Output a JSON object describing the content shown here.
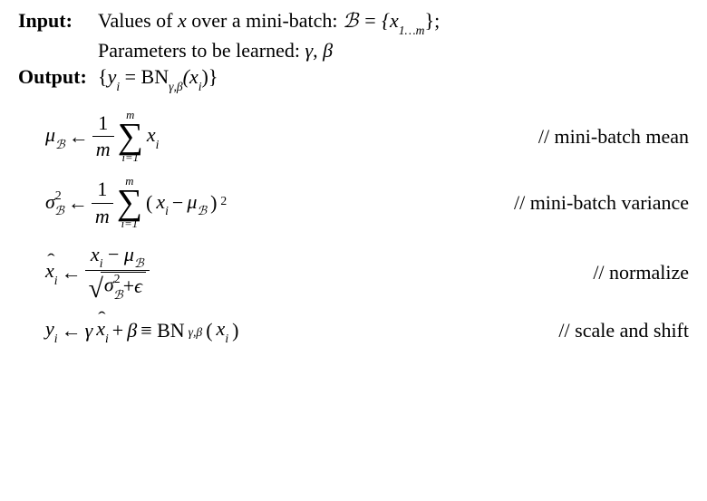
{
  "header": {
    "input_label": "Input:",
    "input_line1_pre": "Values of ",
    "input_line1_var": "x",
    "input_line1_mid": " over a mini-batch: ",
    "input_line1_set": "ℬ = {x",
    "input_line1_sub": "1…m",
    "input_line1_close": "};",
    "input_line2": "Parameters to be learned: ",
    "input_line2_gamma": "γ",
    "input_line2_comma": ", ",
    "input_line2_beta": "β",
    "output_label": "Output:",
    "output_expr_open": "{",
    "output_expr_y": "y",
    "output_expr_ysub": "i",
    "output_expr_eq": " = BN",
    "output_expr_bnsub": "γ,β",
    "output_expr_x": "(x",
    "output_expr_xsub": "i",
    "output_expr_close": ")}"
  },
  "eq1": {
    "lhs_mu": "μ",
    "lhs_sub": "ℬ",
    "arrow": "←",
    "frac_num": "1",
    "frac_den": "m",
    "sum_top": "m",
    "sum_bot": "i=1",
    "x": "x",
    "x_sub": "i",
    "comment": "// mini-batch mean"
  },
  "eq2": {
    "lhs_sigma": "σ",
    "lhs_sup": "2",
    "lhs_sub": "ℬ",
    "arrow": "←",
    "frac_num": "1",
    "frac_den": "m",
    "sum_top": "m",
    "sum_bot": "i=1",
    "open": "(",
    "x": "x",
    "x_sub": "i",
    "minus": " − ",
    "mu": "μ",
    "mu_sub": "ℬ",
    "close": ")",
    "pow": "2",
    "comment": "// mini-batch variance"
  },
  "eq3": {
    "lhs_x": "x",
    "lhs_sub": "i",
    "arrow": "←",
    "num_x": "x",
    "num_xsub": "i",
    "num_minus": " − ",
    "num_mu": "μ",
    "num_musub": "ℬ",
    "den_sigma": "σ",
    "den_sup": "2",
    "den_sub": "ℬ",
    "den_plus": " + ",
    "den_eps": "ϵ",
    "comment": "// normalize"
  },
  "eq4": {
    "lhs_y": "y",
    "lhs_sub": "i",
    "arrow": "←",
    "gamma": "γ",
    "xhat": "x",
    "xhat_sub": "i",
    "plus": " + ",
    "beta": "β",
    "equiv": " ≡ BN",
    "bn_sub": "γ,β",
    "open": "(",
    "x": "x",
    "x_sub": "i",
    "close": ")",
    "comment": "// scale and shift"
  }
}
